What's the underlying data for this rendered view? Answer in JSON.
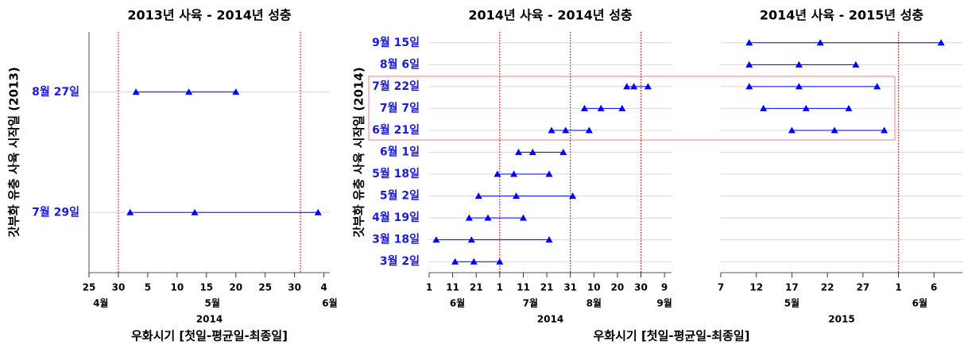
{
  "chart_data": [
    {
      "type": "range",
      "title": "2013년 사육 - 2014년 성충",
      "y_label": "갓부화 유충 사육 시작일 (2013)",
      "x_label": "우화시기 [첫일-평균일-최종일]",
      "categories": [
        "8월 27일",
        "7월 29일"
      ],
      "first": [
        "2014-05-03",
        "2014-05-02"
      ],
      "mean": [
        "2014-05-12",
        "2014-05-13"
      ],
      "last": [
        "2014-05-20",
        "2014-06-03"
      ],
      "color": "#0000ff",
      "xlim": [
        "2014-04-25",
        "2014-06-05"
      ],
      "xticks": [
        {
          "value": "2014-04-25",
          "label": "25"
        },
        {
          "value": "2014-04-30",
          "label": "30"
        },
        {
          "value": "2014-05-05",
          "label": "5"
        },
        {
          "value": "2014-05-10",
          "label": "10"
        },
        {
          "value": "2014-05-15",
          "label": "15"
        },
        {
          "value": "2014-05-20",
          "label": "20"
        },
        {
          "value": "2014-05-25",
          "label": "25"
        },
        {
          "value": "2014-05-30",
          "label": "30"
        },
        {
          "value": "2014-06-04",
          "label": "4"
        }
      ],
      "months": [
        {
          "value": "2014-04-27",
          "label": "4월"
        },
        {
          "value": "2014-05-16",
          "label": "5월"
        },
        {
          "value": "2014-06-05",
          "label": "6월"
        }
      ],
      "year": "2014",
      "ref_lines": [
        "2014-04-30",
        "2014-05-31"
      ],
      "ref_color": "#e00000",
      "grid": true
    },
    {
      "type": "range",
      "title": "2014년 사육 - 2014년 성충",
      "y_label": "갓부화 유충 사육 시작일 (2014)",
      "x_label": "우화시기 [첫일-평균일-최종일]",
      "categories": [
        "9월 15일",
        "8월 6일",
        "7월 22일",
        "7월 7일",
        "6월 21일",
        "6월 1일",
        "5월 18일",
        "5월 2일",
        "4월 19일",
        "3월 18일",
        "3월 2일"
      ],
      "first": [
        null,
        null,
        "2014-08-24",
        "2014-08-06",
        "2014-07-23",
        "2014-07-09",
        "2014-06-30",
        "2014-06-22",
        "2014-06-18",
        "2014-06-04",
        "2014-06-12"
      ],
      "mean": [
        null,
        null,
        "2014-08-27",
        "2014-08-13",
        "2014-07-29",
        "2014-07-15",
        "2014-07-07",
        "2014-07-08",
        "2014-06-26",
        "2014-06-19",
        "2014-06-20"
      ],
      "last": [
        null,
        null,
        "2014-09-02",
        "2014-08-22",
        "2014-08-08",
        "2014-07-28",
        "2014-07-22",
        "2014-08-01",
        "2014-07-11",
        "2014-07-22",
        "2014-07-01"
      ],
      "color": "#0000ff",
      "xlim": [
        "2014-06-01",
        "2014-09-12"
      ],
      "xticks": [
        {
          "value": "2014-06-01",
          "label": "1"
        },
        {
          "value": "2014-06-11",
          "label": "11"
        },
        {
          "value": "2014-06-21",
          "label": "21"
        },
        {
          "value": "2014-07-01",
          "label": "1"
        },
        {
          "value": "2014-07-11",
          "label": "11"
        },
        {
          "value": "2014-07-21",
          "label": "21"
        },
        {
          "value": "2014-07-31",
          "label": "31"
        },
        {
          "value": "2014-08-10",
          "label": "10"
        },
        {
          "value": "2014-08-20",
          "label": "20"
        },
        {
          "value": "2014-08-30",
          "label": "30"
        },
        {
          "value": "2014-09-09",
          "label": "9"
        }
      ],
      "months": [
        {
          "value": "2014-06-13",
          "label": "6월"
        },
        {
          "value": "2014-07-14",
          "label": "7월"
        },
        {
          "value": "2014-08-10",
          "label": "8월"
        },
        {
          "value": "2014-09-09",
          "label": "9월"
        }
      ],
      "year": "2014",
      "ref_lines": [
        "2014-07-01",
        "2014-07-31",
        "2014-08-30"
      ],
      "ref_color": "#e00000",
      "grid": true
    },
    {
      "type": "range",
      "title": "2014년 사육 - 2015년 성충",
      "first": [
        "2015-05-11",
        "2015-05-11",
        "2015-05-11",
        "2015-05-13",
        "2015-05-17",
        null,
        null,
        null,
        null,
        null,
        null
      ],
      "mean": [
        "2015-05-21",
        "2015-05-18",
        "2015-05-18",
        "2015-05-19",
        "2015-05-23",
        null,
        null,
        null,
        null,
        null,
        null
      ],
      "last": [
        "2015-06-07",
        "2015-05-26",
        "2015-05-29",
        "2015-05-25",
        "2015-05-30",
        null,
        null,
        null,
        null,
        null,
        null
      ],
      "color": "#0000ff",
      "xlim": [
        "2015-05-07",
        "2015-06-10"
      ],
      "xticks": [
        {
          "value": "2015-05-07",
          "label": "7"
        },
        {
          "value": "2015-05-12",
          "label": "12"
        },
        {
          "value": "2015-05-17",
          "label": "17"
        },
        {
          "value": "2015-05-22",
          "label": "22"
        },
        {
          "value": "2015-05-27",
          "label": "27"
        },
        {
          "value": "2015-06-01",
          "label": "1"
        },
        {
          "value": "2015-06-06",
          "label": "6"
        }
      ],
      "months": [
        {
          "value": "2015-05-17",
          "label": "5월"
        },
        {
          "value": "2015-06-04",
          "label": "6월"
        }
      ],
      "year": "2015",
      "ref_lines": [
        "2015-06-01"
      ],
      "ref_color": "#e00000",
      "grid": true
    }
  ]
}
